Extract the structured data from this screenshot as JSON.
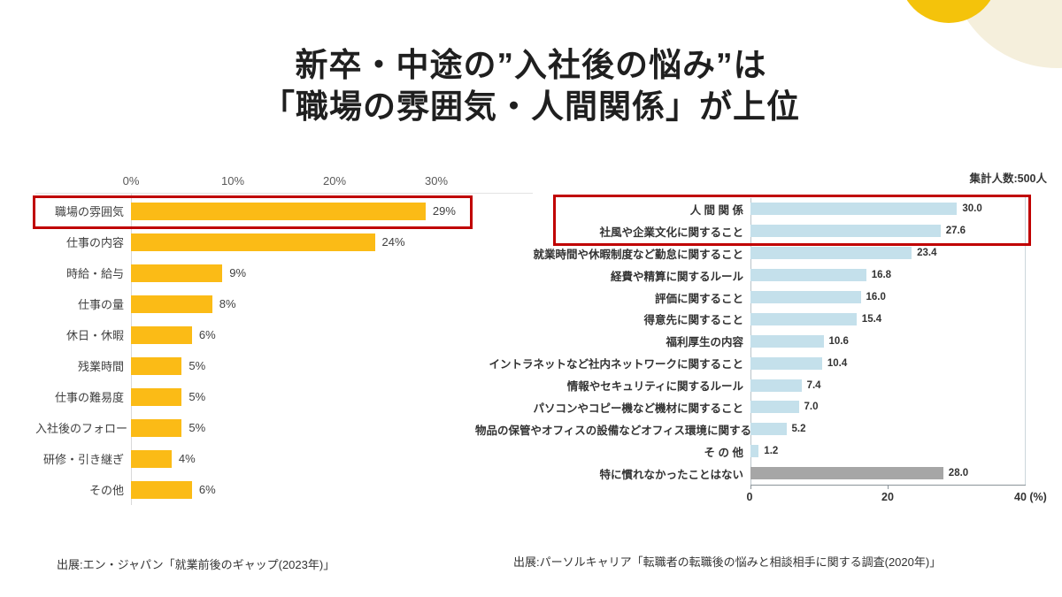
{
  "title": {
    "line1": "新卒・中途の”入社後の悩み”は",
    "line2": "「職場の雰囲気・人間関係」が上位"
  },
  "decor": {
    "yellow_circle_color": "#f4c30b",
    "cream_circle_color": "#f5efdc"
  },
  "left_chart": {
    "axis_ticks": [
      "0%",
      "10%",
      "20%",
      "30%"
    ],
    "source": "出展:エン・ジャパン「就業前後のギャップ(2023年)」"
  },
  "right_chart": {
    "note": "集計人数:500人",
    "axis_ticks": [
      "0",
      "20",
      "40 (%)"
    ],
    "source": "出展:パーソルキャリア「転職者の転職後の悩みと相談相手に関する調査(2020年)」"
  },
  "chart_data": [
    {
      "type": "bar",
      "orientation": "horizontal",
      "title": "",
      "categories": [
        "職場の雰囲気",
        "仕事の内容",
        "時給・給与",
        "仕事の量",
        "休日・休暇",
        "残業時間",
        "仕事の難易度",
        "入社後のフォロー",
        "研修・引き継ぎ",
        "その他"
      ],
      "values": [
        29,
        24,
        9,
        8,
        6,
        5,
        5,
        5,
        4,
        6
      ],
      "value_labels": [
        "29%",
        "24%",
        "9%",
        "8%",
        "6%",
        "5%",
        "5%",
        "5%",
        "4%",
        "6%"
      ],
      "xticks": [
        "0%",
        "10%",
        "20%",
        "30%"
      ],
      "xtick_values": [
        0,
        10,
        20,
        30
      ],
      "xlim": [
        0,
        40
      ],
      "bar_color": "#fbbb16",
      "grid": "top-and-left-axis-only",
      "legend": "none",
      "highlight_rows": [
        0
      ],
      "highlight_color": "#c00000",
      "source": "出展:エン・ジャパン「就業前後のギャップ(2023年)」"
    },
    {
      "type": "bar",
      "orientation": "horizontal",
      "title": "",
      "note": "集計人数:500人",
      "categories": [
        "人 間 関 係",
        "社風や企業文化に関すること",
        "就業時間や休暇制度など勤怠に関すること",
        "経費や精算に関するルール",
        "評価に関すること",
        "得意先に関すること",
        "福利厚生の内容",
        "イントラネットなど社内ネットワークに関すること",
        "情報やセキュリティに関するルール",
        "パソコンやコピー機など機材に関すること",
        "物品の保管やオフィスの設備などオフィス環境に関すること",
        "そ の 他",
        "特に慣れなかったことはない"
      ],
      "values": [
        30.0,
        27.6,
        23.4,
        16.8,
        16.0,
        15.4,
        10.6,
        10.4,
        7.4,
        7.0,
        5.2,
        1.2,
        28.0
      ],
      "value_labels": [
        "30.0",
        "27.6",
        "23.4",
        "16.8",
        "16.0",
        "15.4",
        "10.6",
        "10.4",
        "7.4",
        "7.0",
        "5.2",
        "1.2",
        "28.0"
      ],
      "xticks": [
        "0",
        "20",
        "40 (%)"
      ],
      "xtick_values": [
        0,
        20,
        40
      ],
      "xlim": [
        0,
        40
      ],
      "bar_color": "#c4e0eb",
      "alt_color": "#a6a6a6",
      "alt_rows": [
        12
      ],
      "grid": "vertical-line-at-40",
      "legend": "none",
      "highlight_rows": [
        0,
        1
      ],
      "highlight_color": "#c00000",
      "source": "出展:パーソルキャリア「転職者の転職後の悩みと相談相手に関する調査(2020年)」"
    }
  ]
}
